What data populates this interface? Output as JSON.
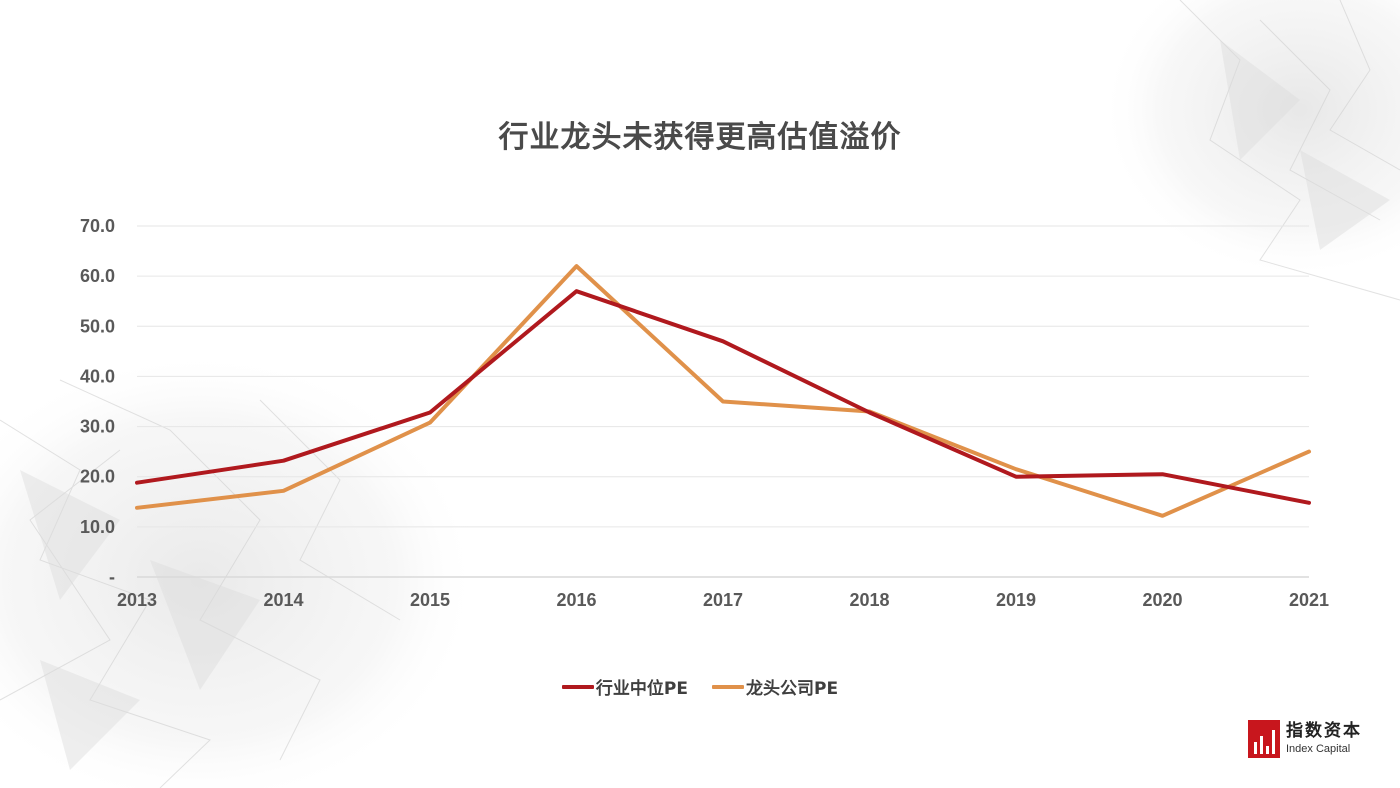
{
  "colors": {
    "series_primary": "#b0191e",
    "series_secondary": "#e0914a",
    "gridline": "#e6e6e6",
    "axis": "#d9d9d9",
    "tick_text": "#595959",
    "logo_red": "#c8161d"
  },
  "logo": {
    "name_cn": "指数资本",
    "name_en": "Index Capital"
  },
  "chart_data": {
    "type": "line",
    "title": "行业龙头未获得更高估值溢价",
    "xlabel": "",
    "ylabel": "",
    "x": [
      "2013",
      "2014",
      "2015",
      "2016",
      "2017",
      "2018",
      "2019",
      "2020",
      "2021"
    ],
    "ylim": [
      0,
      70
    ],
    "y_ticks": [
      0,
      10,
      20,
      30,
      40,
      50,
      60,
      70
    ],
    "y_tick_labels": [
      "-",
      "10.0",
      "20.0",
      "30.0",
      "40.0",
      "50.0",
      "60.0",
      "70.0"
    ],
    "grid": true,
    "legend_position": "bottom",
    "series": [
      {
        "name": "行业中位PE",
        "color": "#b0191e",
        "values": [
          18.8,
          23.2,
          32.8,
          57.0,
          47.0,
          32.8,
          20.0,
          20.5,
          14.8
        ]
      },
      {
        "name": "龙头公司PE",
        "color": "#e0914a",
        "values": [
          13.8,
          17.2,
          30.8,
          62.0,
          35.0,
          33.0,
          21.5,
          12.2,
          25.0
        ]
      }
    ]
  }
}
